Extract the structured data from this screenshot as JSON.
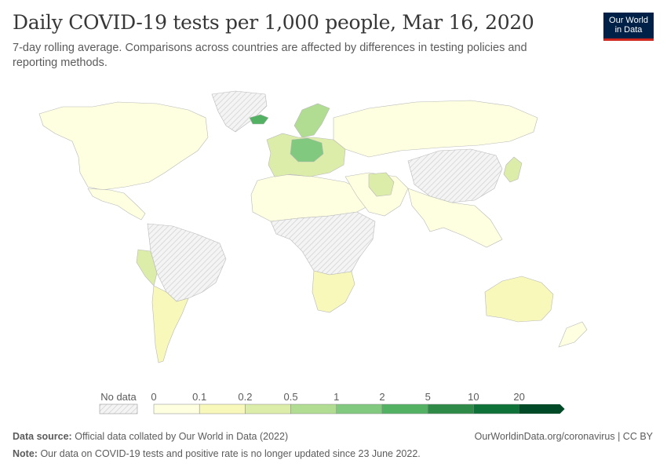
{
  "header": {
    "title": "Daily COVID-19 tests per 1,000 people, Mar 16, 2020",
    "subtitle": "7-day rolling average. Comparisons across countries are affected by differences in testing policies and reporting methods.",
    "logo_line1": "Our World",
    "logo_line2": "in Data"
  },
  "legend": {
    "no_data_label": "No data",
    "thresholds": [
      "0",
      "0.1",
      "0.2",
      "0.5",
      "1",
      "2",
      "5",
      "10",
      "20"
    ],
    "colors": [
      "#fefee0",
      "#f7f8ba",
      "#dcedaa",
      "#b1dd93",
      "#80c97f",
      "#52b162",
      "#2e8b47",
      "#0d7138",
      "#014a28"
    ],
    "no_data_color": "#e6e6e6"
  },
  "footer": {
    "source_label": "Data source:",
    "source_text": "Official data collated by Our World in Data (2022)",
    "note_label": "Note:",
    "note_text": "Our data on COVID-19 tests and positive rate is no longer updated since 23 June 2022.",
    "url_text": "OurWorldinData.org/coronavirus | CC BY"
  },
  "map": {
    "regions": [
      {
        "name": "north-america",
        "color": "#fefee0"
      },
      {
        "name": "central-america",
        "color": "#fefee0"
      },
      {
        "name": "greenland",
        "color": "#e6e6e6"
      },
      {
        "name": "south-america-nodata",
        "color": "#e6e6e6"
      },
      {
        "name": "peru",
        "color": "#dcedaa"
      },
      {
        "name": "chile-argentina",
        "color": "#f7f8ba"
      },
      {
        "name": "africa-nodata",
        "color": "#e6e6e6"
      },
      {
        "name": "north-africa",
        "color": "#fefee0"
      },
      {
        "name": "south-africa",
        "color": "#f7f8ba"
      },
      {
        "name": "europe",
        "color": "#dcedaa"
      },
      {
        "name": "central-europe",
        "color": "#80c97f"
      },
      {
        "name": "iceland",
        "color": "#52b162"
      },
      {
        "name": "scandinavia",
        "color": "#b1dd93"
      },
      {
        "name": "russia",
        "color": "#fefee0"
      },
      {
        "name": "china-nodata",
        "color": "#e6e6e6"
      },
      {
        "name": "middle-east",
        "color": "#fefee0"
      },
      {
        "name": "iran",
        "color": "#dcedaa"
      },
      {
        "name": "india-southeast-asia",
        "color": "#fefee0"
      },
      {
        "name": "korea-japan",
        "color": "#dcedaa"
      },
      {
        "name": "australia",
        "color": "#f7f8ba"
      },
      {
        "name": "new-zealand",
        "color": "#fefee0"
      }
    ]
  }
}
